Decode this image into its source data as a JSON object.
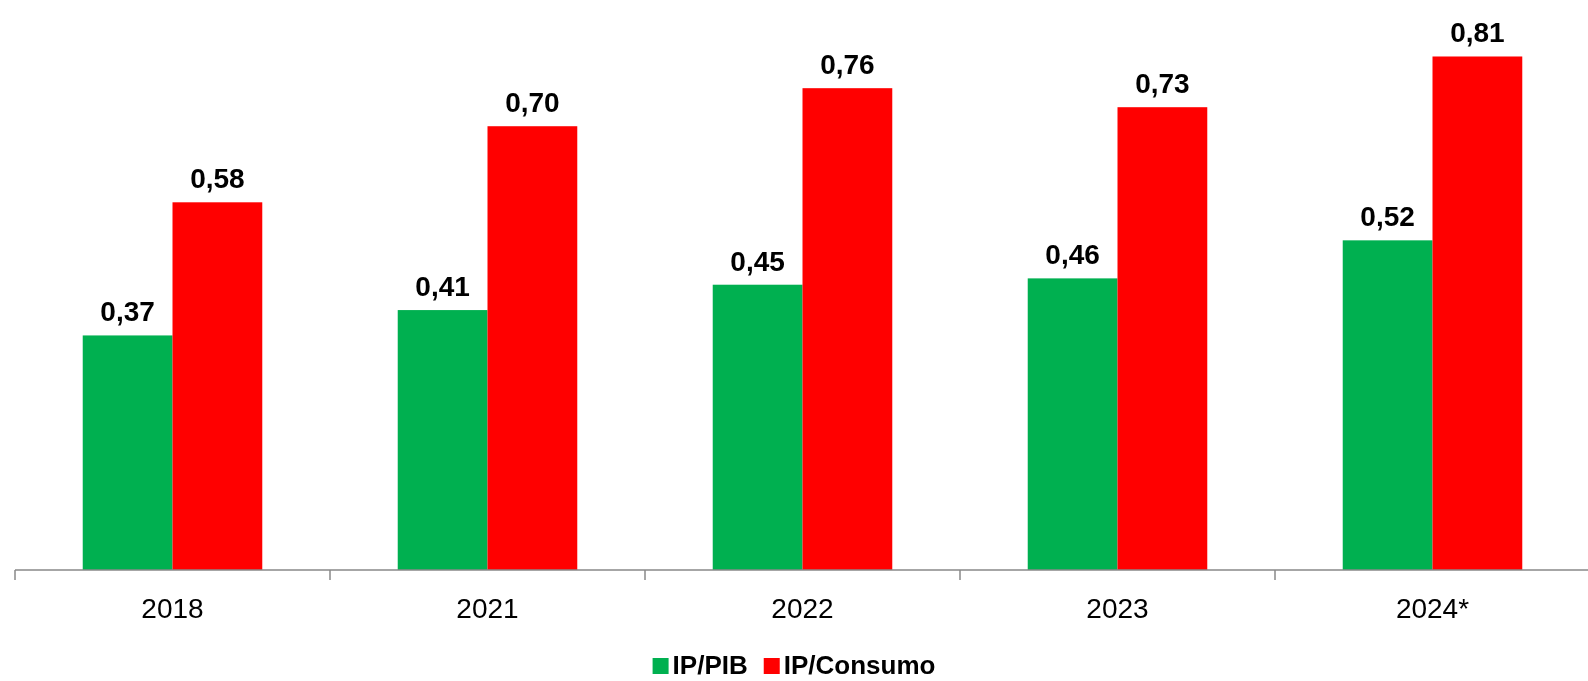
{
  "chart_data": {
    "type": "bar",
    "categories": [
      "2018",
      "2021",
      "2022",
      "2023",
      "2024*"
    ],
    "series": [
      {
        "name": "IP/PIB",
        "color": "#00b050",
        "values": [
          0.37,
          0.41,
          0.45,
          0.46,
          0.52
        ],
        "value_labels": [
          "0,37",
          "0,41",
          "0,45",
          "0,46",
          "0,52"
        ]
      },
      {
        "name": "IP/Consumo",
        "color": "#ff0000",
        "values": [
          0.58,
          0.7,
          0.76,
          0.73,
          0.81
        ],
        "value_labels": [
          "0,58",
          "0,70",
          "0,76",
          "0,73",
          "0,81"
        ]
      }
    ],
    "legend": "bottom"
  }
}
